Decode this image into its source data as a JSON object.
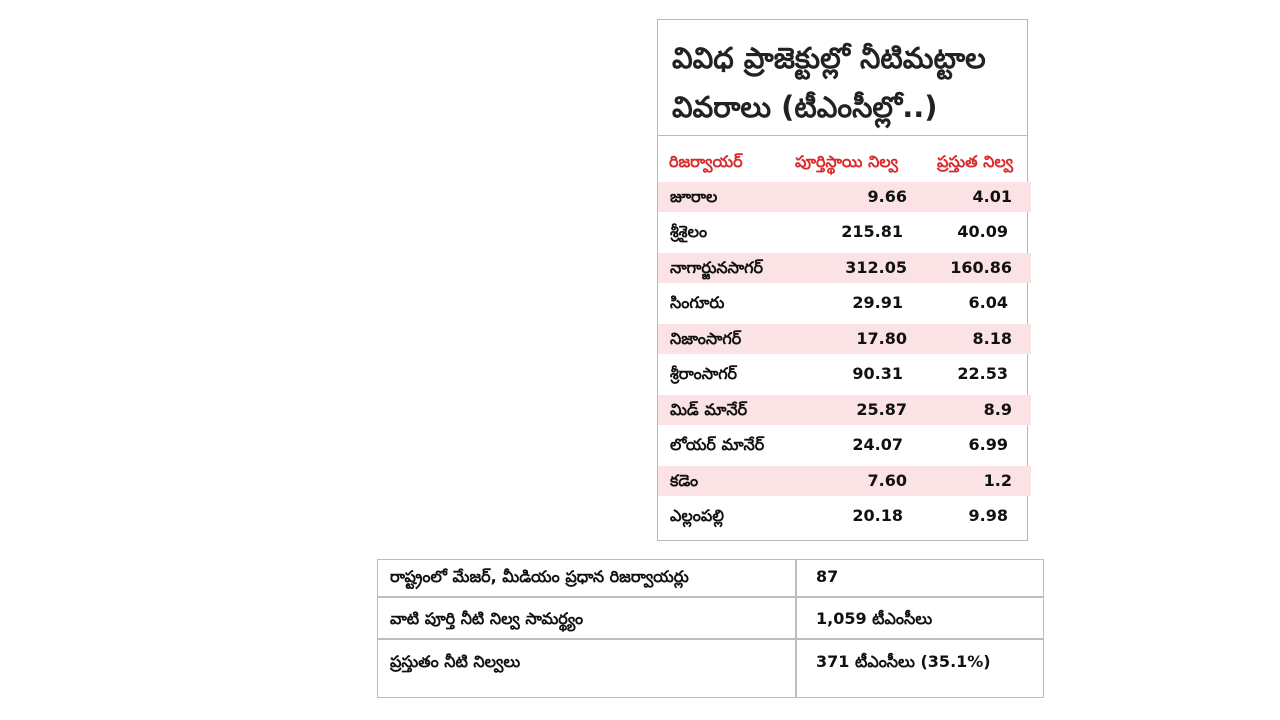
{
  "title": {
    "line1": "వివిధ ప్రాజెక్టుల్లో నీటిమట్టాల",
    "line2": "వివరాలు (టీఎంసీల్లో..)"
  },
  "table": {
    "headers": [
      "రిజర్వాయర్",
      "పూర్తిస్థాయి నిల్వ",
      "ప్రస్తుత నిల్వ"
    ],
    "rows": [
      {
        "name": "జూరాల",
        "full": "9.66",
        "current": "4.01"
      },
      {
        "name": "శ్రీశైలం",
        "full": "215.81",
        "current": "40.09"
      },
      {
        "name": "నాగార్జునసాగర్",
        "full": "312.05",
        "current": "160.86"
      },
      {
        "name": "సింగూరు",
        "full": "29.91",
        "current": "6.04"
      },
      {
        "name": "నిజాంసాగర్",
        "full": "17.80",
        "current": "8.18"
      },
      {
        "name": "శ్రీరాంసాగర్",
        "full": "90.31",
        "current": "22.53"
      },
      {
        "name": "మిడ్ మానేర్",
        "full": "25.87",
        "current": "8.9"
      },
      {
        "name": "లోయర్ మానేర్",
        "full": "24.07",
        "current": "6.99"
      },
      {
        "name": "కడెం",
        "full": "7.60",
        "current": "1.2"
      },
      {
        "name": "ఎల్లంపల్లి",
        "full": "20.18",
        "current": "9.98"
      }
    ]
  },
  "summary": [
    {
      "label": "రాష్ట్రంలో మేజర్, మీడియం ప్రధాన రిజర్వాయర్లు",
      "value": "87"
    },
    {
      "label": "వాటి పూర్తి నీటి నిల్వ సామర్థ్యం",
      "value": "1,059 టీఎంసీలు"
    },
    {
      "label": "ప్రస్తుతం నీటి నిల్వలు",
      "value": "371 టీఎంసీలు (35.1%)"
    }
  ],
  "colors": {
    "header_text": "#d92b2b",
    "row_shade": "#fbe3e5",
    "border": "#b9b9b9"
  }
}
